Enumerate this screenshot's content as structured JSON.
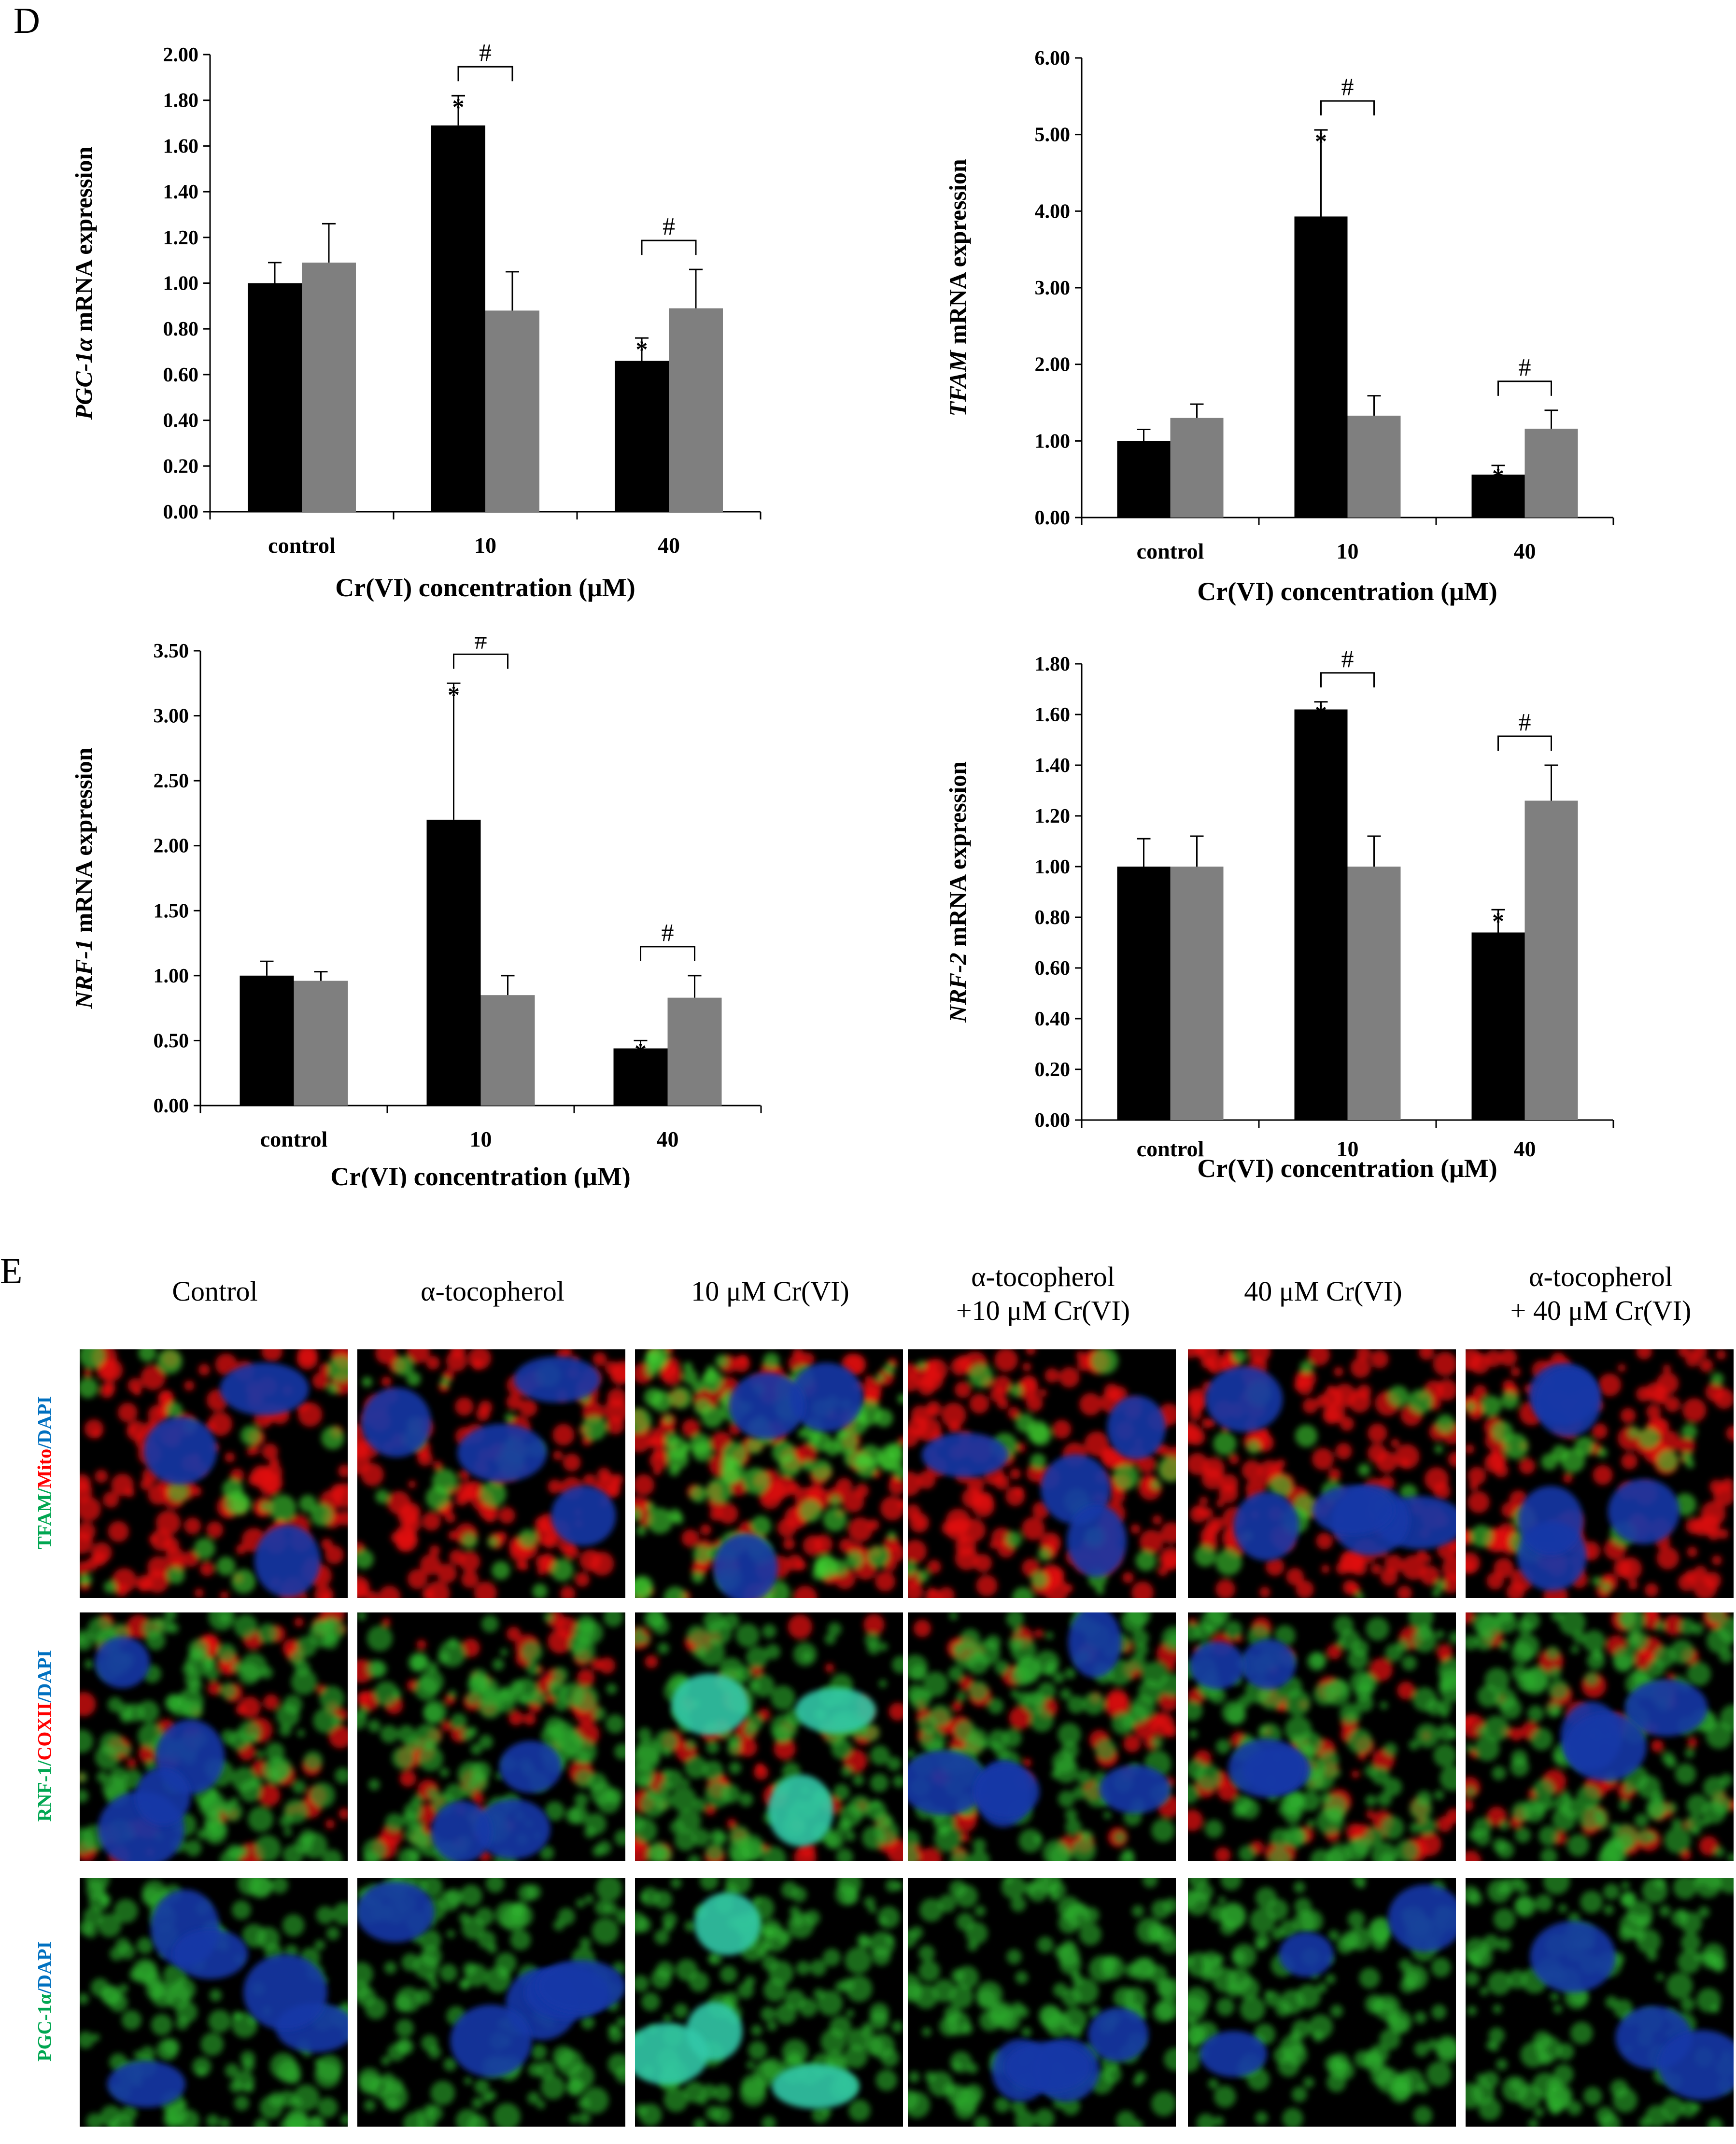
{
  "panel_d_label": "D",
  "panel_e_label": "E",
  "chart_data": [
    {
      "type": "bar",
      "ylabel": "PGC-1α mRNA expression",
      "ylabel_gene": "PGC-1α",
      "ylabel_rest": " mRNA expression",
      "xlabel": "Cr(VI) concentration (μM)",
      "categories": [
        "control",
        "10",
        "40"
      ],
      "ylim": [
        0,
        2.0
      ],
      "yticks": [
        "0.00",
        "0.20",
        "0.40",
        "0.60",
        "0.80",
        "1.00",
        "1.20",
        "1.40",
        "1.60",
        "1.80",
        "2.00"
      ],
      "series": [
        {
          "color": "#000000",
          "values": [
            1.0,
            1.69,
            0.66
          ],
          "errors": [
            0.09,
            0.13,
            0.1
          ]
        },
        {
          "color": "#7f7f7f",
          "values": [
            1.09,
            0.88,
            0.89
          ],
          "errors": [
            0.17,
            0.17,
            0.17
          ]
        }
      ],
      "asterisks": [
        1,
        2
      ],
      "hash_groups": [
        1,
        2
      ],
      "hash_symbol": "#",
      "asterisk_symbol": "*"
    },
    {
      "type": "bar",
      "ylabel": "TFAM mRNA expression",
      "ylabel_gene": "TFAM",
      "ylabel_rest": " mRNA expression",
      "xlabel": "Cr(VI) concentration (μM)",
      "categories": [
        "control",
        "10",
        "40"
      ],
      "ylim": [
        0,
        6.0
      ],
      "yticks": [
        "0.00",
        "1.00",
        "2.00",
        "3.00",
        "4.00",
        "5.00",
        "6.00"
      ],
      "series": [
        {
          "color": "#000000",
          "values": [
            1.0,
            3.93,
            0.56
          ],
          "errors": [
            0.15,
            1.13,
            0.12
          ]
        },
        {
          "color": "#7f7f7f",
          "values": [
            1.3,
            1.33,
            1.16
          ],
          "errors": [
            0.18,
            0.26,
            0.24
          ]
        }
      ],
      "asterisks": [
        1,
        2
      ],
      "hash_groups": [
        1,
        2
      ],
      "hash_symbol": "#",
      "asterisk_symbol": "*"
    },
    {
      "type": "bar",
      "ylabel": "NRF-1 mRNA expression",
      "ylabel_gene": "NRF-1",
      "ylabel_rest": " mRNA expression",
      "xlabel": "Cr(VI) concentration (μM)",
      "categories": [
        "control",
        "10",
        "40"
      ],
      "ylim": [
        0,
        3.5
      ],
      "yticks": [
        "0.00",
        "0.50",
        "1.00",
        "1.50",
        "2.00",
        "2.50",
        "3.00",
        "3.50"
      ],
      "series": [
        {
          "color": "#000000",
          "values": [
            1.0,
            2.2,
            0.44
          ],
          "errors": [
            0.11,
            1.05,
            0.06
          ]
        },
        {
          "color": "#7f7f7f",
          "values": [
            0.96,
            0.85,
            0.83
          ],
          "errors": [
            0.07,
            0.15,
            0.17
          ]
        }
      ],
      "asterisks": [
        1,
        2
      ],
      "hash_groups": [
        1,
        2
      ],
      "hash_symbol": "#",
      "asterisk_symbol": "*"
    },
    {
      "type": "bar",
      "ylabel": "NRF-2 mRNA expression",
      "ylabel_gene": "NRF-2",
      "ylabel_rest": " mRNA expression",
      "xlabel": "Cr(VI) concentration (μM)",
      "categories": [
        "control",
        "10",
        "40"
      ],
      "ylim": [
        0,
        1.8
      ],
      "yticks": [
        "0.00",
        "0.20",
        "0.40",
        "0.60",
        "0.80",
        "1.00",
        "1.20",
        "1.40",
        "1.60",
        "1.80"
      ],
      "series": [
        {
          "color": "#000000",
          "values": [
            1.0,
            1.62,
            0.74
          ],
          "errors": [
            0.11,
            0.03,
            0.09
          ]
        },
        {
          "color": "#7f7f7f",
          "values": [
            1.0,
            1.0,
            1.26
          ],
          "errors": [
            0.12,
            0.12,
            0.14
          ]
        }
      ],
      "asterisks": [
        1,
        2
      ],
      "hash_groups": [
        1,
        2
      ],
      "hash_symbol": "#",
      "asterisk_symbol": "*"
    }
  ],
  "panel_e": {
    "columns": [
      [
        "Control"
      ],
      [
        "α-tocopherol"
      ],
      [
        "10 μM Cr(VI)"
      ],
      [
        "α-tocopherol",
        "+10 μM Cr(VI)"
      ],
      [
        "40 μM Cr(VI)"
      ],
      [
        "α-tocopherol",
        "+ 40 μM Cr(VI)"
      ]
    ],
    "rows": [
      {
        "parts": [
          {
            "text": "TFAM",
            "color": "#00a651"
          },
          {
            "text": "/",
            "color": "#00a651"
          },
          {
            "text": "Mito",
            "color": "#ff0000"
          },
          {
            "text": "/DAPI",
            "color": "#0070c0"
          }
        ]
      },
      {
        "parts": [
          {
            "text": "RNF-1",
            "color": "#00a651"
          },
          {
            "text": "/",
            "color": "#00a651"
          },
          {
            "text": "COXII",
            "color": "#ff0000"
          },
          {
            "text": "/DAPI",
            "color": "#0070c0"
          }
        ]
      },
      {
        "parts": [
          {
            "text": "PGC-1α",
            "color": "#00a651"
          },
          {
            "text": "/DAPI",
            "color": "#0070c0"
          }
        ]
      }
    ]
  }
}
